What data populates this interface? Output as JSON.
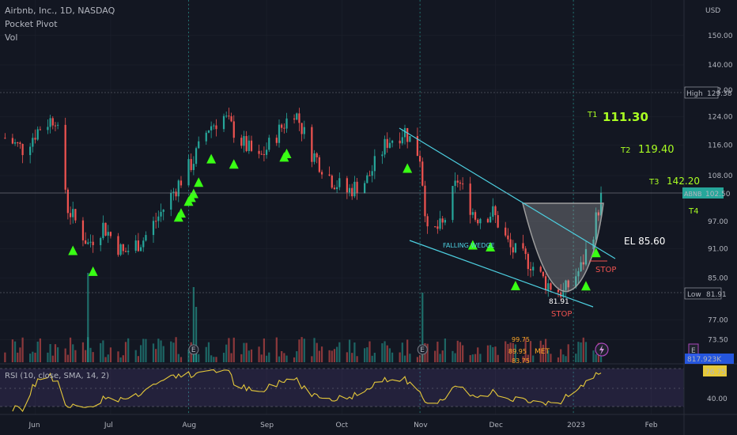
{
  "header": {
    "title": "Airbnb, Inc., 1D, NASDAQ",
    "indicator1": "Pocket Pivot",
    "indicator2": "Vol"
  },
  "price_axis": {
    "currency": "USD",
    "ticks": [
      "150.00",
      "140.00",
      "132.00",
      "124.00",
      "116.00",
      "108.00",
      "97.00",
      "91.00",
      "85.00",
      "77.00",
      "73.50"
    ],
    "high_label": "High",
    "high_value": "129.38",
    "low_label": "Low",
    "low_value": "81.91",
    "last_symbol": "ABNB",
    "last_value": "102.50",
    "volume_value": "817.923K",
    "e_badge": "E"
  },
  "rsi": {
    "label": "RSI (10, close, SMA, 14, 2)",
    "value": "76.75",
    "tick": "40.00"
  },
  "time_axis": [
    "Jun",
    "Jul",
    "Aug",
    "Sep",
    "Oct",
    "Nov",
    "Dec",
    "2023",
    "Feb"
  ],
  "annotations": {
    "t1_label": "T1",
    "t1_value": "111.30",
    "t2_label": "T2",
    "t2_value": "119.40",
    "t3_label": "T3",
    "t3_value": "142.20",
    "t4_label": "T4",
    "entry": "EL 85.60",
    "stop_upper": "STOP",
    "stop_lower": "STOP",
    "falling_wedge": "FALLING WEDGE",
    "low_mark": "81.91",
    "vol_labels": [
      "99.75",
      "89.95",
      "83.75"
    ],
    "met": "MET"
  },
  "colors": {
    "background": "#131722",
    "up": "#26a69a",
    "down": "#ef5350",
    "signal": "#39ff14",
    "wedge": "#4dd0e1",
    "rsi_line": "#e6c93a",
    "target": "#aaff22"
  },
  "chart_data": {
    "type": "candlestick",
    "symbol": "ABNB",
    "exchange": "NASDAQ",
    "interval": "1D",
    "y_scale": "log",
    "ylim": [
      70,
      160
    ],
    "x_range": [
      "2022-05-18",
      "2023-02-14"
    ],
    "high": 129.38,
    "low": 81.91,
    "last": 102.5,
    "path_points": [
      {
        "date": "2022-05-20",
        "close": 118
      },
      {
        "date": "2022-05-27",
        "close": 115
      },
      {
        "date": "2022-06-03",
        "close": 121
      },
      {
        "date": "2022-06-09",
        "close": 124
      },
      {
        "date": "2022-06-14",
        "close": 100
      },
      {
        "date": "2022-06-22",
        "close": 92
      },
      {
        "date": "2022-06-28",
        "close": 96
      },
      {
        "date": "2022-07-06",
        "close": 90
      },
      {
        "date": "2022-07-14",
        "close": 93
      },
      {
        "date": "2022-07-21",
        "close": 99
      },
      {
        "date": "2022-07-27",
        "close": 105
      },
      {
        "date": "2022-08-03",
        "close": 112
      },
      {
        "date": "2022-08-09",
        "close": 121
      },
      {
        "date": "2022-08-15",
        "close": 124
      },
      {
        "date": "2022-08-22",
        "close": 117
      },
      {
        "date": "2022-08-29",
        "close": 112
      },
      {
        "date": "2022-09-07",
        "close": 121
      },
      {
        "date": "2022-09-12",
        "close": 126
      },
      {
        "date": "2022-09-19",
        "close": 114
      },
      {
        "date": "2022-09-27",
        "close": 107
      },
      {
        "date": "2022-10-03",
        "close": 104
      },
      {
        "date": "2022-10-11",
        "close": 107
      },
      {
        "date": "2022-10-19",
        "close": 117
      },
      {
        "date": "2022-10-26",
        "close": 120
      },
      {
        "date": "2022-11-01",
        "close": 113
      },
      {
        "date": "2022-11-04",
        "close": 94
      },
      {
        "date": "2022-11-10",
        "close": 96
      },
      {
        "date": "2022-11-16",
        "close": 107
      },
      {
        "date": "2022-11-23",
        "close": 98
      },
      {
        "date": "2022-11-30",
        "close": 99
      },
      {
        "date": "2022-12-07",
        "close": 91
      },
      {
        "date": "2022-12-15",
        "close": 88
      },
      {
        "date": "2022-12-21",
        "close": 84
      },
      {
        "date": "2022-12-28",
        "close": 82
      },
      {
        "date": "2023-01-04",
        "close": 87
      },
      {
        "date": "2023-01-09",
        "close": 95
      },
      {
        "date": "2023-01-12",
        "close": 102.5
      }
    ],
    "pocket_pivot_dates": [
      "2022-06-16",
      "2022-06-24",
      "2022-07-28",
      "2022-07-29",
      "2022-08-01",
      "2022-08-02",
      "2022-08-03",
      "2022-08-05",
      "2022-08-10",
      "2022-08-19",
      "2022-09-08",
      "2022-09-09",
      "2022-10-27",
      "2022-11-22",
      "2022-11-29",
      "2022-12-09",
      "2023-01-06",
      "2023-01-10"
    ],
    "rsi_ylim": [
      10,
      90
    ],
    "rsi_last": 76.75
  }
}
